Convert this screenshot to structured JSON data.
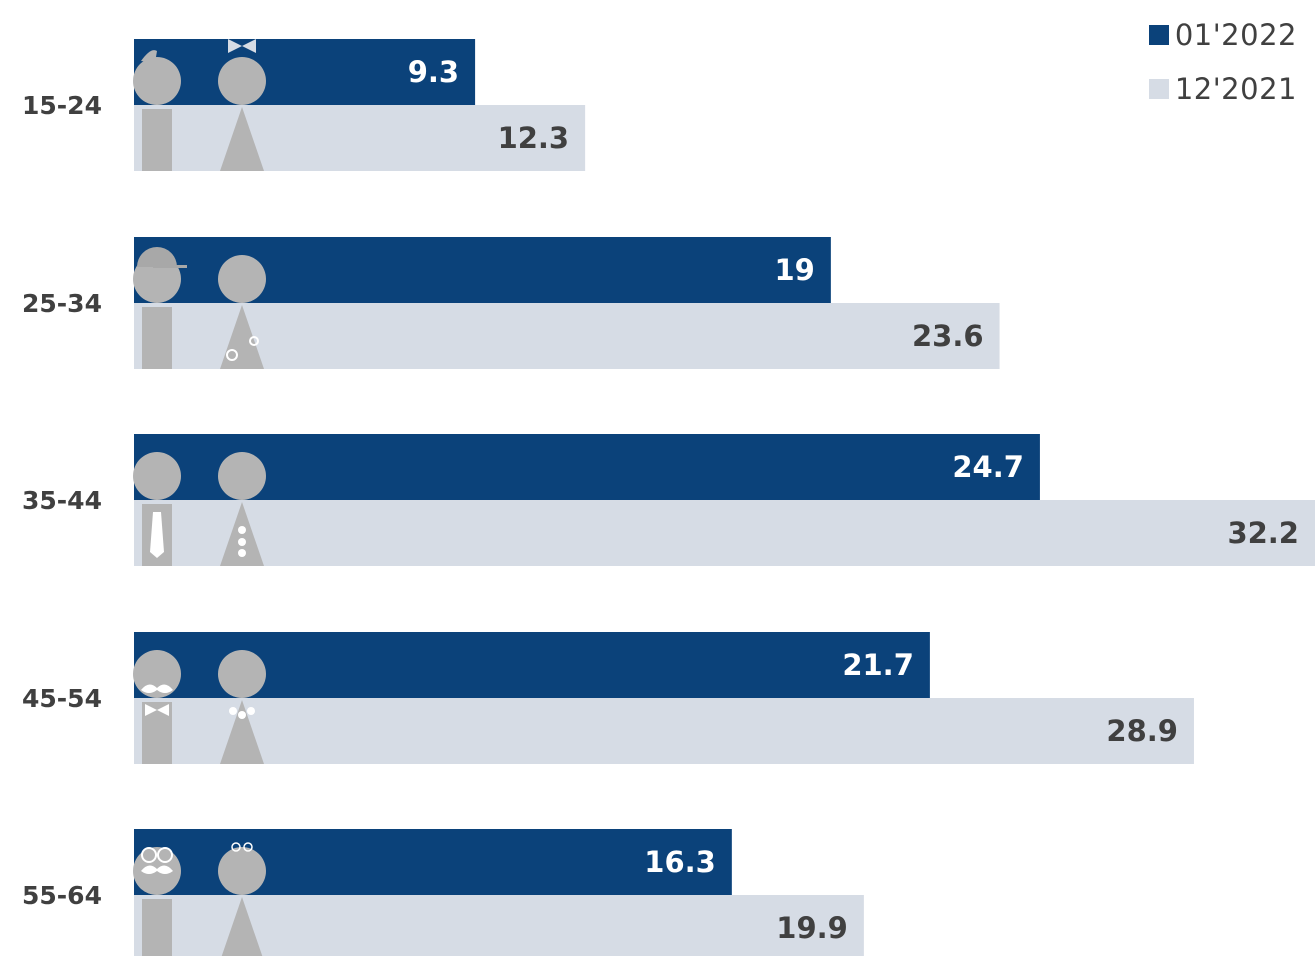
{
  "colors": {
    "series_current": "#0b427a",
    "series_previous": "#d6dce5",
    "icon": "#b4b4b4",
    "text_dark": "#404040",
    "text_light": "#ffffff"
  },
  "legend": {
    "items": [
      {
        "label": "01'2022",
        "color": "#0b427a"
      },
      {
        "label": "12'2021",
        "color": "#d6dce5"
      }
    ]
  },
  "chart_data": {
    "type": "bar",
    "orientation": "horizontal",
    "categories": [
      "15-24",
      "25-34",
      "35-44",
      "45-54",
      "55-64"
    ],
    "series": [
      {
        "name": "01'2022",
        "values": [
          9.3,
          19,
          24.7,
          21.7,
          16.3
        ]
      },
      {
        "name": "12'2021",
        "values": [
          12.3,
          23.6,
          32.2,
          28.9,
          19.9
        ]
      }
    ],
    "value_labels": [
      [
        "9.3",
        "19",
        "24.7",
        "21.7",
        "16.3"
      ],
      [
        "12.3",
        "23.6",
        "32.2",
        "28.9",
        "19.9"
      ]
    ],
    "xlim": [
      0,
      32.2
    ],
    "grid": false,
    "legend_position": "top-right",
    "icons": [
      "young-man-and-woman-icon",
      "cap-man-and-flower-dress-woman-icon",
      "tie-man-and-buttons-woman-icon",
      "mustache-man-and-necklace-woman-icon",
      "glasses-man-and-glasses-woman-icon"
    ]
  }
}
